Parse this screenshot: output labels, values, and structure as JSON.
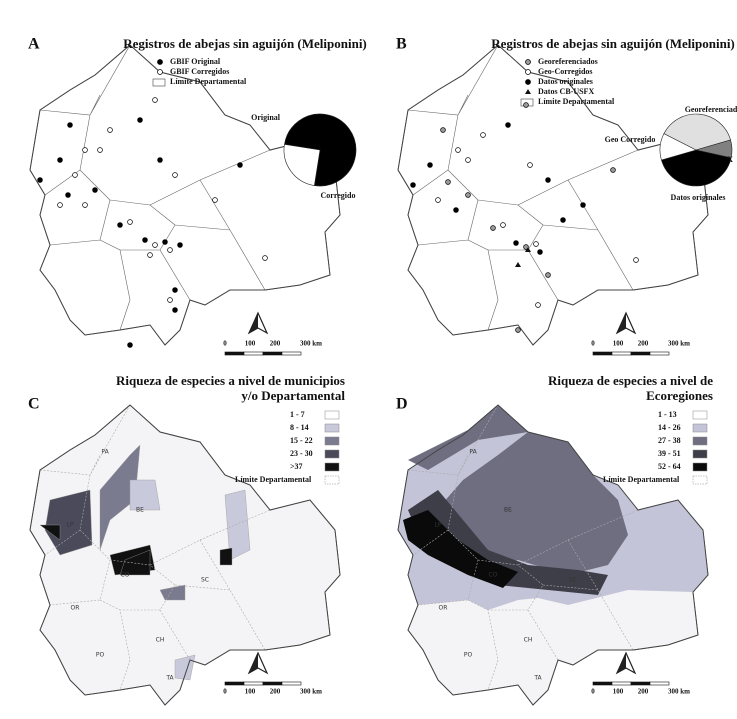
{
  "panels": [
    {
      "letter": "A",
      "title": [
        "Registros de abejas sin aguijón (Meliponini)"
      ],
      "legend": [
        {
          "label": "GBIF Original",
          "symbol": "dot-black"
        },
        {
          "label": "GBIF Corregidos",
          "symbol": "dot-white"
        },
        {
          "label": "Límite Departamental",
          "symbol": "box"
        }
      ],
      "pie": {
        "labels": [
          "Original",
          "Corregido"
        ],
        "values": [
          75,
          25
        ],
        "colors": [
          "#000000",
          "#ffffff"
        ]
      },
      "scale": [
        "0",
        "100",
        "200",
        "300 km"
      ]
    },
    {
      "letter": "B",
      "title": [
        "Registros de abejas sin aguijón (Meliponini)"
      ],
      "legend": [
        {
          "label": "Georeferenciados",
          "symbol": "dot-gray"
        },
        {
          "label": "Geo-Corregidos",
          "symbol": "dot-white"
        },
        {
          "label": "Datos originales",
          "symbol": "dot-black"
        },
        {
          "label": "Datos CB-USFX",
          "symbol": "triangle"
        },
        {
          "label": "Límite Departamental",
          "symbol": "box"
        }
      ],
      "pie": {
        "labels": [
          "Georeferenciado",
          "Datos CB-USFX",
          "Datos originales",
          "Geo Corregido"
        ],
        "values": [
          38,
          8,
          42,
          12
        ],
        "colors": [
          "#e0e0e0",
          "#808080",
          "#000000",
          "#ffffff"
        ]
      },
      "scale": [
        "0",
        "100",
        "200",
        "300 km"
      ]
    },
    {
      "letter": "C",
      "title": [
        "Riqueza de especies a nivel de municipios",
        "y/o Departamental"
      ],
      "legend": [
        {
          "label": "1 - 7",
          "color": "#ffffff"
        },
        {
          "label": "8 - 14",
          "color": "#c9c9dc"
        },
        {
          "label": "15 - 22",
          "color": "#7b7b90"
        },
        {
          "label": "23 - 30",
          "color": "#4a4a5a"
        },
        {
          "label": ">37",
          "color": "#111111"
        },
        {
          "label": "Límite Departamental",
          "color": "#ffffff"
        }
      ],
      "departments": [
        "PA",
        "BE",
        "LP",
        "CO",
        "SC",
        "OR",
        "CH",
        "PO",
        "TA"
      ],
      "scale": [
        "0",
        "100",
        "200",
        "300 km"
      ]
    },
    {
      "letter": "D",
      "title": [
        "Riqueza de especies a nivel de",
        "Ecoregiones"
      ],
      "legend": [
        {
          "label": "1 - 13",
          "color": "#ffffff"
        },
        {
          "label": "14 - 26",
          "color": "#c4c4d8"
        },
        {
          "label": "27 - 38",
          "color": "#6e6e80"
        },
        {
          "label": "39 - 51",
          "color": "#3e3e48"
        },
        {
          "label": "52 - 64",
          "color": "#0a0a0a"
        },
        {
          "label": "Límite Departamental",
          "color": "#ffffff"
        }
      ],
      "departments": [
        "PA",
        "BE",
        "LP",
        "CO",
        "SC",
        "OR",
        "CH",
        "PO",
        "TA"
      ],
      "scale": [
        "0",
        "100",
        "200",
        "300 km"
      ]
    }
  ]
}
